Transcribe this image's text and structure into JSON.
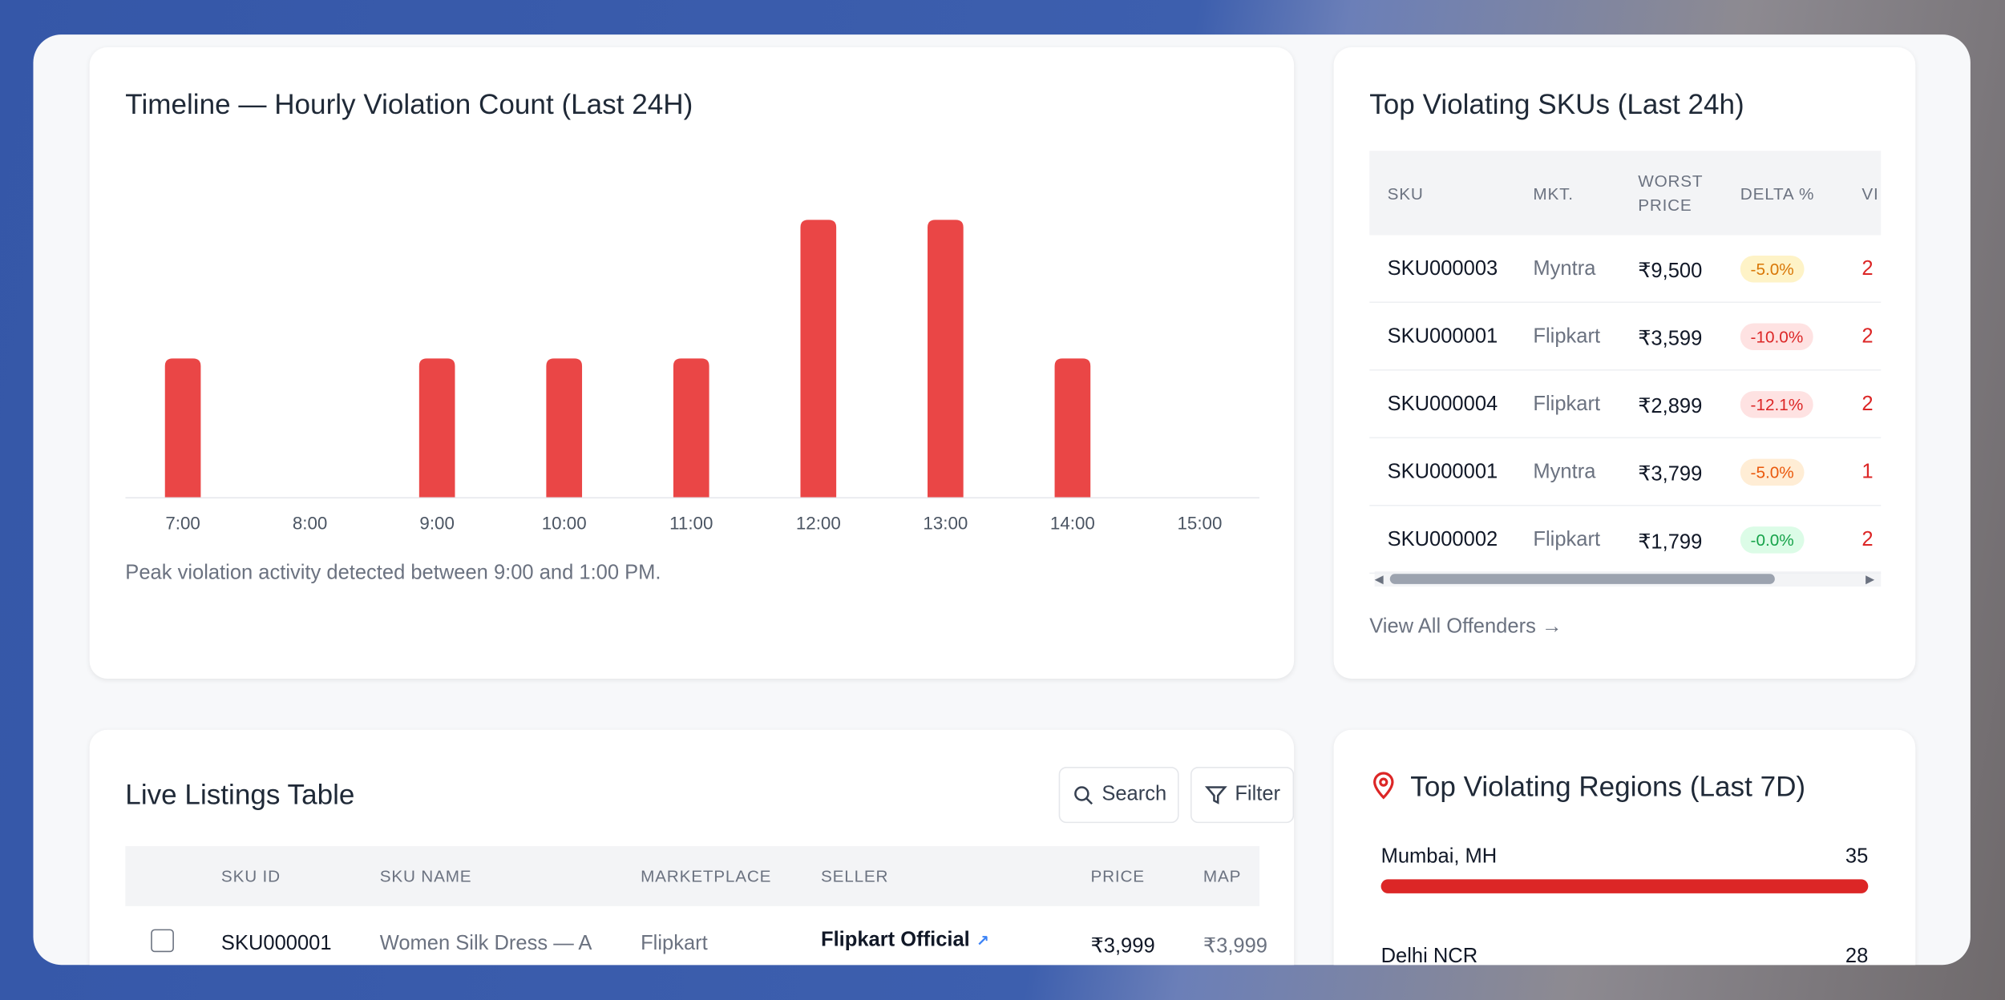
{
  "chart_data": {
    "type": "bar",
    "title": "Timeline — Hourly Violation Count (Last 24H)",
    "categories": [
      "7:00",
      "8:00",
      "9:00",
      "10:00",
      "11:00",
      "12:00",
      "13:00",
      "14:00",
      "15:00"
    ],
    "values": [
      1,
      0,
      1,
      1,
      1,
      2,
      2,
      1,
      0
    ],
    "color": "#ea4646",
    "caption": "Peak violation activity detected between 9:00 and 1:00 PM."
  },
  "skus": {
    "title": "Top Violating SKUs (Last 24h)",
    "columns": [
      "SKU",
      "MKT.",
      "WORST PRICE",
      "DELTA %",
      "VI"
    ],
    "rows": [
      [
        "SKU000003",
        "Myntra",
        "₹9,500",
        "-5.0%",
        "2"
      ],
      [
        "SKU000001",
        "Flipkart",
        "₹3,599",
        "-10.0%",
        "2"
      ],
      [
        "SKU000004",
        "Flipkart",
        "₹2,899",
        "-12.1%",
        "2"
      ],
      [
        "SKU000001",
        "Myntra",
        "₹3,799",
        "-5.0%",
        "1"
      ],
      [
        "SKU000002",
        "Flipkart",
        "₹1,799",
        "-0.0%",
        "2"
      ]
    ],
    "link": "View All Offenders →"
  },
  "listings": {
    "title": "Live Listings Table",
    "buttons": [
      "Search",
      "Filter"
    ],
    "columns": [
      "SKU ID",
      "SKU NAME",
      "MARKETPLACE",
      "SELLER",
      "PRICE",
      "MAP"
    ],
    "rows": [
      [
        "SKU000001",
        "Women Silk Dress — A",
        "Flipkart",
        "Flipkart Official",
        "₹3,999",
        "₹3,999"
      ]
    ]
  },
  "regions": {
    "title": "Top Violating Regions (Last 7D)",
    "items": [
      {
        "name": "Mumbai, MH",
        "value": 35
      },
      {
        "name": "Delhi NCR",
        "value": 28
      }
    ]
  }
}
